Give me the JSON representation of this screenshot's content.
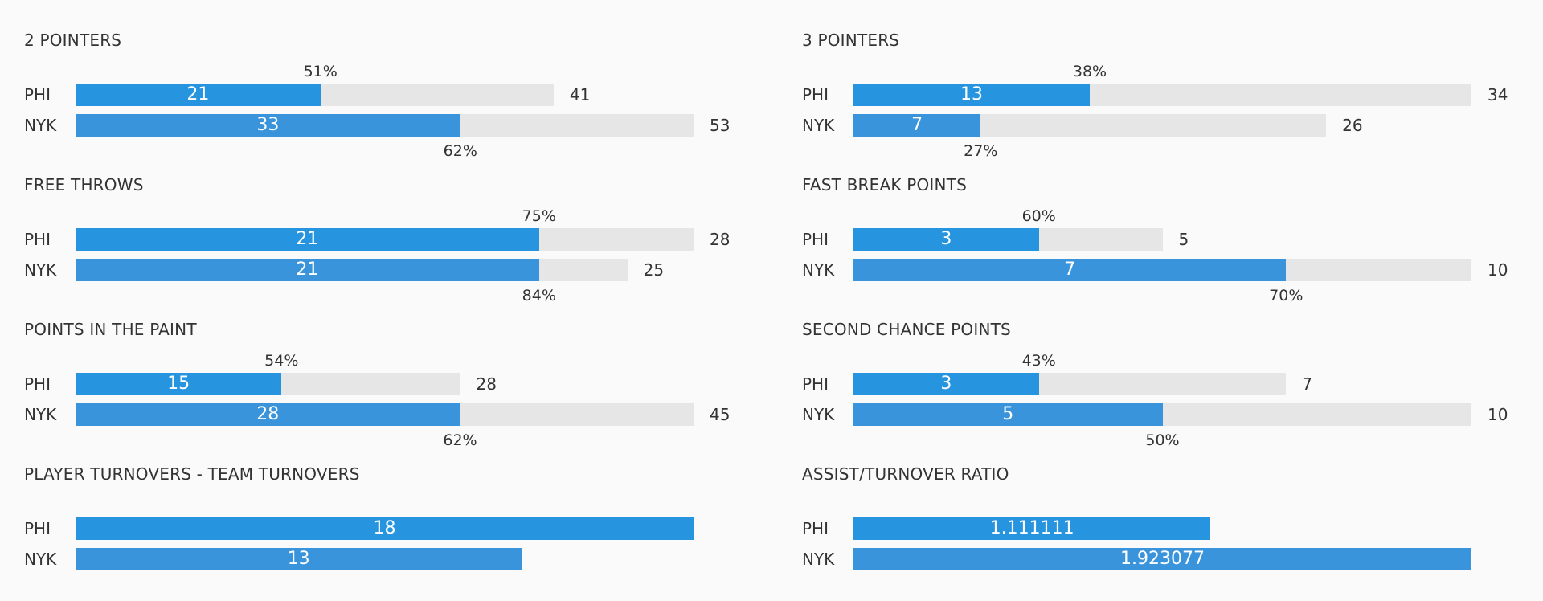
{
  "chart_data": [
    {
      "type": "bar",
      "title": "2 POINTERS",
      "scale_max": 53,
      "rows": [
        {
          "team": "PHI",
          "made": 21,
          "attempts": 41,
          "pct": "51%"
        },
        {
          "team": "NYK",
          "made": 33,
          "attempts": 53,
          "pct": "62%"
        }
      ]
    },
    {
      "type": "bar",
      "title": "3 POINTERS",
      "scale_max": 34,
      "rows": [
        {
          "team": "PHI",
          "made": 13,
          "attempts": 34,
          "pct": "38%"
        },
        {
          "team": "NYK",
          "made": 7,
          "attempts": 26,
          "pct": "27%"
        }
      ]
    },
    {
      "type": "bar",
      "title": "FREE THROWS",
      "scale_max": 28,
      "rows": [
        {
          "team": "PHI",
          "made": 21,
          "attempts": 28,
          "pct": "75%"
        },
        {
          "team": "NYK",
          "made": 21,
          "attempts": 25,
          "pct": "84%"
        }
      ]
    },
    {
      "type": "bar",
      "title": "FAST BREAK POINTS",
      "scale_max": 10,
      "rows": [
        {
          "team": "PHI",
          "made": 3,
          "attempts": 5,
          "pct": "60%"
        },
        {
          "team": "NYK",
          "made": 7,
          "attempts": 10,
          "pct": "70%"
        }
      ]
    },
    {
      "type": "bar",
      "title": "POINTS IN THE PAINT",
      "scale_max": 45,
      "rows": [
        {
          "team": "PHI",
          "made": 15,
          "attempts": 28,
          "pct": "54%"
        },
        {
          "team": "NYK",
          "made": 28,
          "attempts": 45,
          "pct": "62%"
        }
      ]
    },
    {
      "type": "bar",
      "title": "SECOND CHANCE POINTS",
      "scale_max": 10,
      "rows": [
        {
          "team": "PHI",
          "made": 3,
          "attempts": 7,
          "pct": "43%"
        },
        {
          "team": "NYK",
          "made": 5,
          "attempts": 10,
          "pct": "50%"
        }
      ]
    },
    {
      "type": "bar",
      "title": "PLAYER TURNOVERS - TEAM TURNOVERS",
      "scale_max": 18,
      "rows": [
        {
          "team": "PHI",
          "made": 18,
          "label": "18"
        },
        {
          "team": "NYK",
          "made": 13,
          "label": "13"
        }
      ]
    },
    {
      "type": "bar",
      "title": "ASSIST/TURNOVER RATIO",
      "scale_max": 1.923077,
      "rows": [
        {
          "team": "PHI",
          "made": 1.111111,
          "label": "1.111111"
        },
        {
          "team": "NYK",
          "made": 1.923077,
          "label": "1.923077"
        }
      ]
    }
  ],
  "colors": {
    "bar_phi": "#2794e0",
    "bar_nyk": "#3a94dc",
    "track": "#e6e6e6"
  }
}
